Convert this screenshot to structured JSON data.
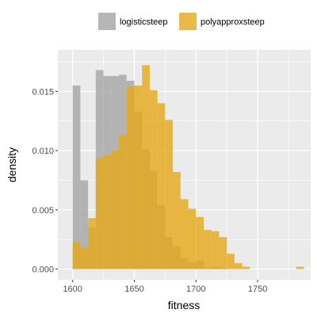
{
  "chart_data": {
    "type": "bar",
    "xlabel": "fitness",
    "ylabel": "density",
    "xlim": [
      1588,
      1793
    ],
    "ylim": [
      -0.0009,
      0.0185
    ],
    "xticks": [
      1600,
      1650,
      1700,
      1750
    ],
    "yticks": [
      0.0,
      0.005,
      0.01,
      0.015
    ],
    "ytick_labels": [
      "0.000",
      "0.005",
      "0.010",
      "0.015"
    ],
    "bin_width": 6.25,
    "bin_start": 1600,
    "legend_position": "top",
    "series": [
      {
        "name": "logisticsteep",
        "color": "#a9a9a9",
        "values": [
          0.0155,
          0.0075,
          0.0035,
          0.0168,
          0.0163,
          0.0163,
          0.0164,
          0.0159,
          0.0133,
          0.0101,
          0.0083,
          0.0054,
          0.0027,
          0.0019,
          0.0009,
          0.0006,
          0.0007,
          0.0001,
          0.0002,
          0.0001,
          0.0,
          0.0,
          0.0,
          0.0,
          0.0,
          0.0,
          0.0,
          0.0,
          0.0,
          0.0,
          0.0
        ]
      },
      {
        "name": "polyapproxsteep",
        "color": "#e6a817",
        "values": [
          0.0023,
          0.0018,
          0.0043,
          0.0094,
          0.0096,
          0.01,
          0.0113,
          0.0154,
          0.0155,
          0.0172,
          0.0151,
          0.014,
          0.0126,
          0.0082,
          0.0059,
          0.0051,
          0.0044,
          0.0033,
          0.0032,
          0.0027,
          0.0013,
          0.0005,
          0.0002,
          0.0,
          0.0,
          0.0,
          0.0,
          0.0,
          0.0,
          0.0002,
          0.0
        ]
      }
    ]
  }
}
